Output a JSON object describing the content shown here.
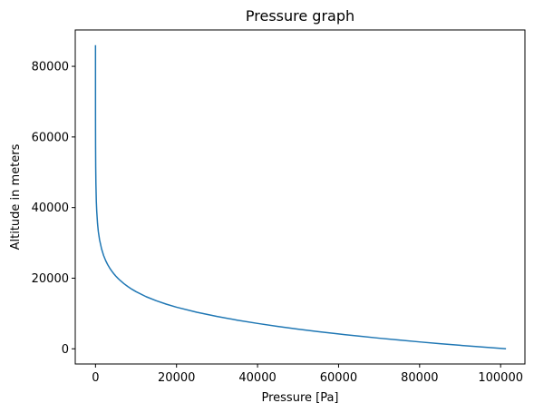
{
  "chart_data": {
    "type": "line",
    "title": "Pressure graph",
    "xlabel": "Pressure [Pa]",
    "ylabel": "Altitude in meters",
    "xlim": [
      -5000,
      106000
    ],
    "ylim": [
      -4300,
      90300
    ],
    "xticks": [
      0,
      20000,
      40000,
      60000,
      80000,
      100000
    ],
    "yticks": [
      0,
      20000,
      40000,
      60000,
      80000
    ],
    "grid": false,
    "line_color": "#1f77b4",
    "series": [
      {
        "x": [
          101325,
          95000,
          90000,
          85000,
          80000,
          75000,
          70000,
          65000,
          60000,
          55000,
          50000,
          45000,
          40000,
          35000,
          30000,
          25000,
          20000,
          17500,
          15000,
          12500,
          10000,
          9000,
          8000,
          7000,
          6000,
          5500,
          5000,
          4500,
          4000,
          3500,
          3000,
          2500,
          2000,
          1500,
          1000,
          700,
          500,
          300,
          200,
          100,
          50,
          20,
          10,
          5,
          2,
          1,
          0.5,
          0.3
        ],
        "y": [
          0,
          540,
          988,
          1457,
          1949,
          2466,
          3012,
          3591,
          4206,
          4865,
          5574,
          6344,
          7185,
          8117,
          9164,
          10363,
          11784,
          12633,
          13608,
          14756,
          16183,
          16859,
          17611,
          18464,
          19449,
          20005,
          20612,
          21281,
          22027,
          22871,
          23848,
          25005,
          26425,
          28279,
          30890,
          33182,
          35482,
          39042,
          41720,
          46823,
          51483,
          57436,
          61766,
          66061,
          71723,
          75981,
          80246,
          86000
        ]
      }
    ]
  }
}
